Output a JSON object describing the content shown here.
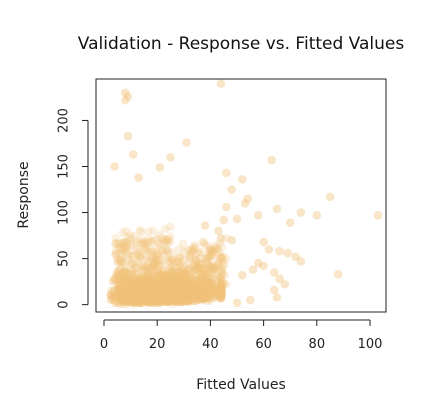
{
  "chart_data": {
    "type": "scatter",
    "title": "Validation - Response vs. Fitted Values",
    "xlabel": "Fitted Values",
    "ylabel": "Response",
    "xlim": [
      -3,
      106
    ],
    "ylim": [
      -8,
      245
    ],
    "xticks": [
      0,
      20,
      40,
      60,
      80,
      100
    ],
    "yticks": [
      0,
      50,
      100,
      150,
      200
    ],
    "grid": false,
    "legend": "none",
    "point_color": "#F0C27A",
    "series": [
      {
        "values": [
          [
            8,
            230
          ],
          [
            8,
            222
          ],
          [
            9,
            226
          ],
          [
            44,
            240
          ],
          [
            9,
            183
          ],
          [
            11,
            163
          ],
          [
            31,
            176
          ],
          [
            4,
            150
          ],
          [
            25,
            160
          ],
          [
            21,
            149
          ],
          [
            13,
            138
          ],
          [
            46,
            143
          ],
          [
            63,
            157
          ],
          [
            52,
            136
          ],
          [
            48,
            125
          ],
          [
            54,
            115
          ],
          [
            65,
            104
          ],
          [
            58,
            97
          ],
          [
            45,
            92
          ],
          [
            38,
            86
          ],
          [
            44,
            72
          ],
          [
            48,
            70
          ],
          [
            60,
            68
          ],
          [
            62,
            60
          ],
          [
            66,
            58
          ],
          [
            69,
            56
          ],
          [
            72,
            52
          ],
          [
            74,
            47
          ],
          [
            58,
            45
          ],
          [
            60,
            42
          ],
          [
            56,
            38
          ],
          [
            52,
            32
          ],
          [
            64,
            35
          ],
          [
            66,
            28
          ],
          [
            68,
            22
          ],
          [
            64,
            16
          ],
          [
            65,
            8
          ],
          [
            55,
            5
          ],
          [
            50,
            2
          ],
          [
            80,
            97
          ],
          [
            85,
            117
          ],
          [
            88,
            33
          ],
          [
            103,
            97
          ],
          [
            74,
            100
          ],
          [
            70,
            89
          ],
          [
            53,
            110
          ],
          [
            46,
            106
          ],
          [
            50,
            93
          ],
          [
            43,
            80
          ],
          [
            40,
            60
          ]
        ]
      }
    ]
  }
}
